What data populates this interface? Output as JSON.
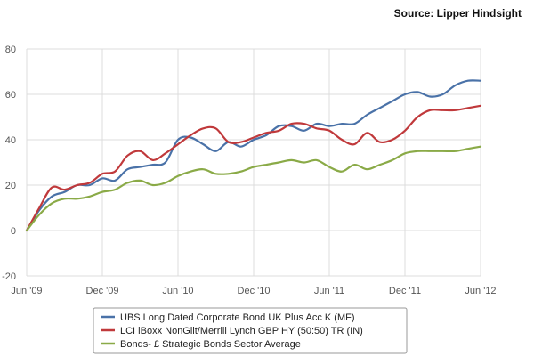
{
  "source_text": "Source: Lipper Hindsight",
  "chart_data": {
    "type": "line",
    "title": "",
    "xlabel": "",
    "ylabel": "",
    "ylim": [
      -20,
      80
    ],
    "yticks": [
      "80",
      "60",
      "40",
      "20",
      "0",
      "-20"
    ],
    "x_tick_labels": [
      "Jun '09",
      "Dec '09",
      "Jun '10",
      "Dec '10",
      "Jun '11",
      "Dec '11",
      "Jun '12"
    ],
    "grid": true,
    "legend_position": "bottom",
    "series": [
      {
        "name": "UBS Long Dated Corporate Bond UK Plus Acc K (MF)",
        "color": "#4a72a8",
        "x": [
          0,
          1,
          2,
          3,
          4,
          5,
          6,
          7,
          8,
          9,
          10,
          11,
          12,
          13,
          14,
          15,
          16,
          17,
          18,
          19,
          20,
          21,
          22,
          23,
          24,
          25,
          26,
          27,
          28,
          29,
          30,
          31,
          32,
          33,
          34,
          35,
          36
        ],
        "values": [
          0,
          9,
          15,
          17,
          20,
          20,
          23,
          22,
          27,
          28,
          29,
          30,
          40,
          41,
          38,
          35,
          39,
          37,
          40,
          42,
          46,
          46,
          44,
          47,
          46,
          47,
          47,
          51,
          54,
          57,
          60,
          61,
          59,
          60,
          64,
          66,
          66
        ]
      },
      {
        "name": "LCI iBoxx NonGilt/Merrill Lynch GBP HY (50:50) TR (IN)",
        "color": "#c0393b",
        "x": [
          0,
          1,
          2,
          3,
          4,
          5,
          6,
          7,
          8,
          9,
          10,
          11,
          12,
          13,
          14,
          15,
          16,
          17,
          18,
          19,
          20,
          21,
          22,
          23,
          24,
          25,
          26,
          27,
          28,
          29,
          30,
          31,
          32,
          33,
          34,
          35,
          36
        ],
        "values": [
          0,
          10,
          19,
          18,
          20,
          21,
          25,
          26,
          33,
          35,
          31,
          34,
          38,
          42,
          45,
          45,
          39,
          39,
          41,
          43,
          44,
          47,
          47,
          45,
          44,
          40,
          38,
          43,
          39,
          40,
          44,
          50,
          53,
          53,
          53,
          54,
          55
        ]
      },
      {
        "name": "Bonds- £ Strategic Bonds Sector Average",
        "color": "#8aaa47",
        "x": [
          0,
          1,
          2,
          3,
          4,
          5,
          6,
          7,
          8,
          9,
          10,
          11,
          12,
          13,
          14,
          15,
          16,
          17,
          18,
          19,
          20,
          21,
          22,
          23,
          24,
          25,
          26,
          27,
          28,
          29,
          30,
          31,
          32,
          33,
          34,
          35,
          36
        ],
        "values": [
          0,
          7,
          12,
          14,
          14,
          15,
          17,
          18,
          21,
          22,
          20,
          21,
          24,
          26,
          27,
          25,
          25,
          26,
          28,
          29,
          30,
          31,
          30,
          31,
          28,
          26,
          29,
          27,
          29,
          31,
          34,
          35,
          35,
          35,
          35,
          36,
          37
        ]
      }
    ]
  }
}
